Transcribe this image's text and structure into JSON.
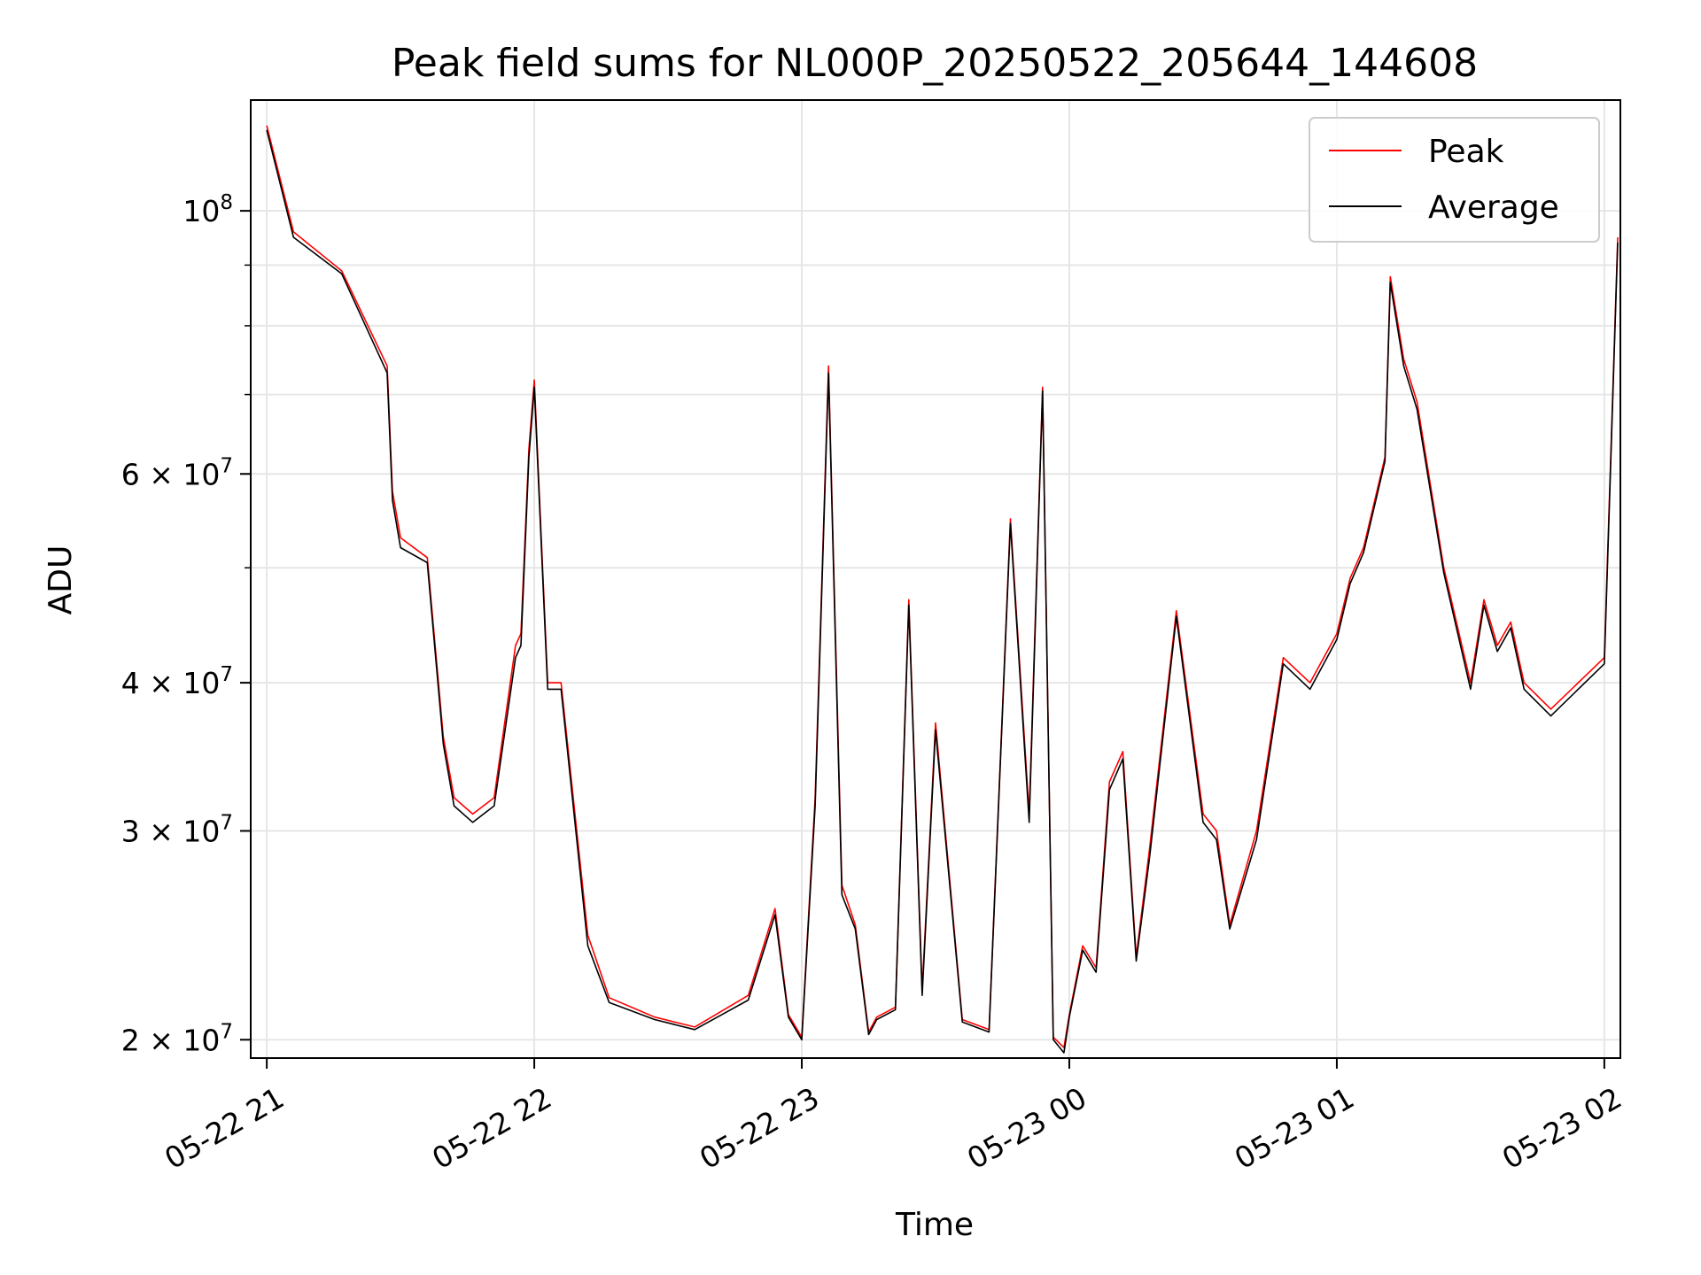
{
  "chart_data": {
    "type": "line",
    "title": "Peak field sums for NL000P_20250522_205644_144608",
    "xlabel": "Time",
    "ylabel": "ADU",
    "yscale": "log",
    "ylim": [
      19300000,
      124000000
    ],
    "xlim": [
      -0.06,
      5.06
    ],
    "grid": true,
    "legend_position": "top-right",
    "x_ticks": [
      {
        "value": 0,
        "label": "05-22 21"
      },
      {
        "value": 1,
        "label": "05-22 22"
      },
      {
        "value": 2,
        "label": "05-22 23"
      },
      {
        "value": 3,
        "label": "05-23 00"
      },
      {
        "value": 4,
        "label": "05-23 01"
      },
      {
        "value": 5,
        "label": "05-23 02"
      }
    ],
    "y_ticks": [
      {
        "value": 20000000,
        "base": "2 × 10",
        "exp": "7"
      },
      {
        "value": 30000000,
        "base": "3 × 10",
        "exp": "7"
      },
      {
        "value": 40000000,
        "base": "4 × 10",
        "exp": "7"
      },
      {
        "value": 60000000,
        "base": "6 × 10",
        "exp": "7"
      },
      {
        "value": 100000000,
        "base": "10",
        "exp": "8"
      }
    ],
    "y_minor_ticks": [
      50000000,
      70000000,
      80000000,
      90000000
    ],
    "series": [
      {
        "name": "Peak",
        "color": "#ff0000",
        "x": [
          0.0,
          0.1,
          0.28,
          0.45,
          0.47,
          0.5,
          0.6,
          0.66,
          0.7,
          0.77,
          0.85,
          0.93,
          0.95,
          0.98,
          1.0,
          1.05,
          1.1,
          1.2,
          1.28,
          1.45,
          1.6,
          1.8,
          1.9,
          1.95,
          2.0,
          2.05,
          2.1,
          2.15,
          2.2,
          2.25,
          2.28,
          2.35,
          2.4,
          2.45,
          2.5,
          2.6,
          2.7,
          2.78,
          2.85,
          2.9,
          2.94,
          2.98,
          3.0,
          3.05,
          3.1,
          3.15,
          3.2,
          3.25,
          3.3,
          3.4,
          3.5,
          3.55,
          3.6,
          3.7,
          3.8,
          3.9,
          4.0,
          4.05,
          4.1,
          4.18,
          4.2,
          4.25,
          4.3,
          4.4,
          4.5,
          4.55,
          4.6,
          4.65,
          4.7,
          4.8,
          5.0,
          5.05
        ],
        "y": [
          118000000,
          96000000,
          89000000,
          74000000,
          58000000,
          53000000,
          51000000,
          36000000,
          32000000,
          31000000,
          32000000,
          43000000,
          44000000,
          63000000,
          72000000,
          40000000,
          40000000,
          24500000,
          21700000,
          20900000,
          20500000,
          21800000,
          25800000,
          21000000,
          20100000,
          32000000,
          74000000,
          27000000,
          25000000,
          20300000,
          20900000,
          21300000,
          47000000,
          22000000,
          37000000,
          20800000,
          20400000,
          55000000,
          31000000,
          71000000,
          20100000,
          19700000,
          21000000,
          24000000,
          23000000,
          33000000,
          35000000,
          23500000,
          29000000,
          46000000,
          31000000,
          30000000,
          25000000,
          30000000,
          42000000,
          40000000,
          44000000,
          49000000,
          52000000,
          62000000,
          88000000,
          75000000,
          69000000,
          50000000,
          40000000,
          47000000,
          43000000,
          45000000,
          40000000,
          38000000,
          42000000,
          95000000
        ]
      },
      {
        "name": "Average",
        "color": "#000000",
        "x": [
          0.0,
          0.1,
          0.28,
          0.45,
          0.47,
          0.5,
          0.6,
          0.66,
          0.7,
          0.77,
          0.85,
          0.93,
          0.95,
          0.98,
          1.0,
          1.05,
          1.1,
          1.2,
          1.28,
          1.45,
          1.6,
          1.8,
          1.9,
          1.95,
          2.0,
          2.05,
          2.1,
          2.15,
          2.2,
          2.25,
          2.28,
          2.35,
          2.4,
          2.45,
          2.5,
          2.6,
          2.7,
          2.78,
          2.85,
          2.9,
          2.94,
          2.98,
          3.0,
          3.05,
          3.1,
          3.15,
          3.2,
          3.25,
          3.3,
          3.4,
          3.5,
          3.55,
          3.6,
          3.7,
          3.8,
          3.9,
          4.0,
          4.05,
          4.1,
          4.18,
          4.2,
          4.25,
          4.3,
          4.4,
          4.5,
          4.55,
          4.6,
          4.65,
          4.7,
          4.8,
          5.0,
          5.05
        ],
        "y": [
          117000000,
          95000000,
          88500000,
          73000000,
          57000000,
          52000000,
          50500000,
          35500000,
          31500000,
          30500000,
          31500000,
          42000000,
          43000000,
          62000000,
          71000000,
          39500000,
          39500000,
          24000000,
          21500000,
          20800000,
          20400000,
          21600000,
          25500000,
          20900000,
          20000000,
          31500000,
          73000000,
          26500000,
          24800000,
          20200000,
          20800000,
          21200000,
          46500000,
          21800000,
          36500000,
          20700000,
          20300000,
          54500000,
          30500000,
          70500000,
          20000000,
          19500000,
          20900000,
          23800000,
          22800000,
          32500000,
          34500000,
          23300000,
          28500000,
          45500000,
          30500000,
          29500000,
          24800000,
          29500000,
          41500000,
          39500000,
          43500000,
          48500000,
          51500000,
          61500000,
          87000000,
          74000000,
          68000000,
          49500000,
          39500000,
          46500000,
          42500000,
          44500000,
          39500000,
          37500000,
          41500000,
          94000000
        ]
      }
    ]
  }
}
